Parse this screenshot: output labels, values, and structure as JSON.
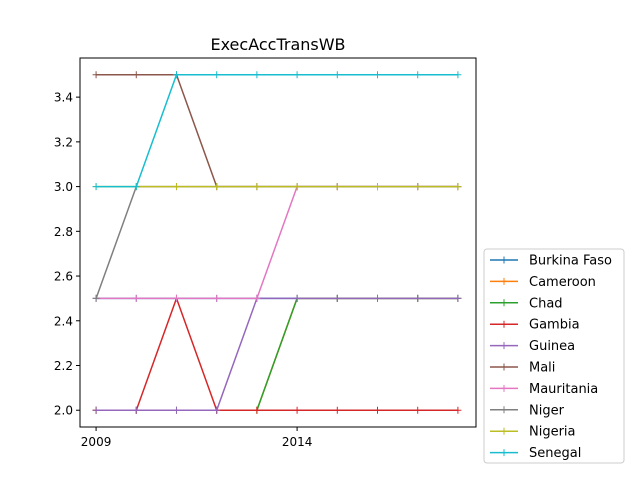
{
  "chart_data": {
    "type": "line",
    "title": "ExecAccTransWB",
    "xlabel": "",
    "ylabel": "",
    "x": [
      2009,
      2010,
      2011,
      2012,
      2013,
      2014,
      2015,
      2016,
      2017,
      2018
    ],
    "xlim": [
      2008.6,
      2018.45
    ],
    "ylim": [
      1.925,
      3.575
    ],
    "xticks": [
      {
        "value": 2009,
        "label": "2009"
      },
      {
        "value": 2014,
        "label": "2014"
      }
    ],
    "yticks": [
      {
        "value": 2.0,
        "label": "2.0"
      },
      {
        "value": 2.2,
        "label": "2.2"
      },
      {
        "value": 2.4,
        "label": "2.4"
      },
      {
        "value": 2.6,
        "label": "2.6"
      },
      {
        "value": 2.8,
        "label": "2.8"
      },
      {
        "value": 3.0,
        "label": "3.0"
      },
      {
        "value": 3.2,
        "label": "3.2"
      },
      {
        "value": 3.4,
        "label": "3.4"
      }
    ],
    "grid": false,
    "legend_position": "outside-right-bottom",
    "series": [
      {
        "name": "Burkina Faso",
        "color": "#1f77b4",
        "values": [
          2.5,
          2.5,
          2.5,
          2.5,
          2.5,
          2.5,
          2.5,
          2.5,
          2.5,
          2.5
        ]
      },
      {
        "name": "Cameroon",
        "color": "#ff7f0e",
        "values": [
          2.0,
          2.0,
          2.0,
          2.0,
          2.0,
          2.5,
          2.5,
          2.5,
          2.5,
          2.5
        ]
      },
      {
        "name": "Chad",
        "color": "#2ca02c",
        "values": [
          2.0,
          2.0,
          2.0,
          2.0,
          2.0,
          2.5,
          2.5,
          2.5,
          2.5,
          2.5
        ]
      },
      {
        "name": "Gambia",
        "color": "#d62728",
        "values": [
          2.0,
          2.0,
          2.5,
          2.0,
          2.0,
          2.0,
          2.0,
          2.0,
          2.0,
          2.0
        ]
      },
      {
        "name": "Guinea",
        "color": "#9467bd",
        "values": [
          2.0,
          2.0,
          2.0,
          2.0,
          2.5,
          2.5,
          2.5,
          2.5,
          2.5,
          2.5
        ]
      },
      {
        "name": "Mali",
        "color": "#8c564b",
        "values": [
          3.5,
          3.5,
          3.5,
          3.0,
          3.0,
          3.0,
          3.0,
          3.0,
          3.0,
          3.0
        ]
      },
      {
        "name": "Mauritania",
        "color": "#e377c2",
        "values": [
          2.5,
          2.5,
          2.5,
          2.5,
          2.5,
          3.0,
          3.0,
          3.0,
          3.0,
          3.0
        ]
      },
      {
        "name": "Niger",
        "color": "#7f7f7f",
        "values": [
          2.5,
          3.0,
          3.0,
          3.0,
          3.0,
          3.0,
          3.0,
          3.0,
          3.0,
          3.0
        ]
      },
      {
        "name": "Nigeria",
        "color": "#bcbd22",
        "values": [
          3.0,
          3.0,
          3.0,
          3.0,
          3.0,
          3.0,
          3.0,
          3.0,
          3.0,
          3.0
        ]
      },
      {
        "name": "Senegal",
        "color": "#17becf",
        "values": [
          3.0,
          3.0,
          3.5,
          3.5,
          3.5,
          3.5,
          3.5,
          3.5,
          3.5,
          3.5
        ]
      }
    ]
  }
}
